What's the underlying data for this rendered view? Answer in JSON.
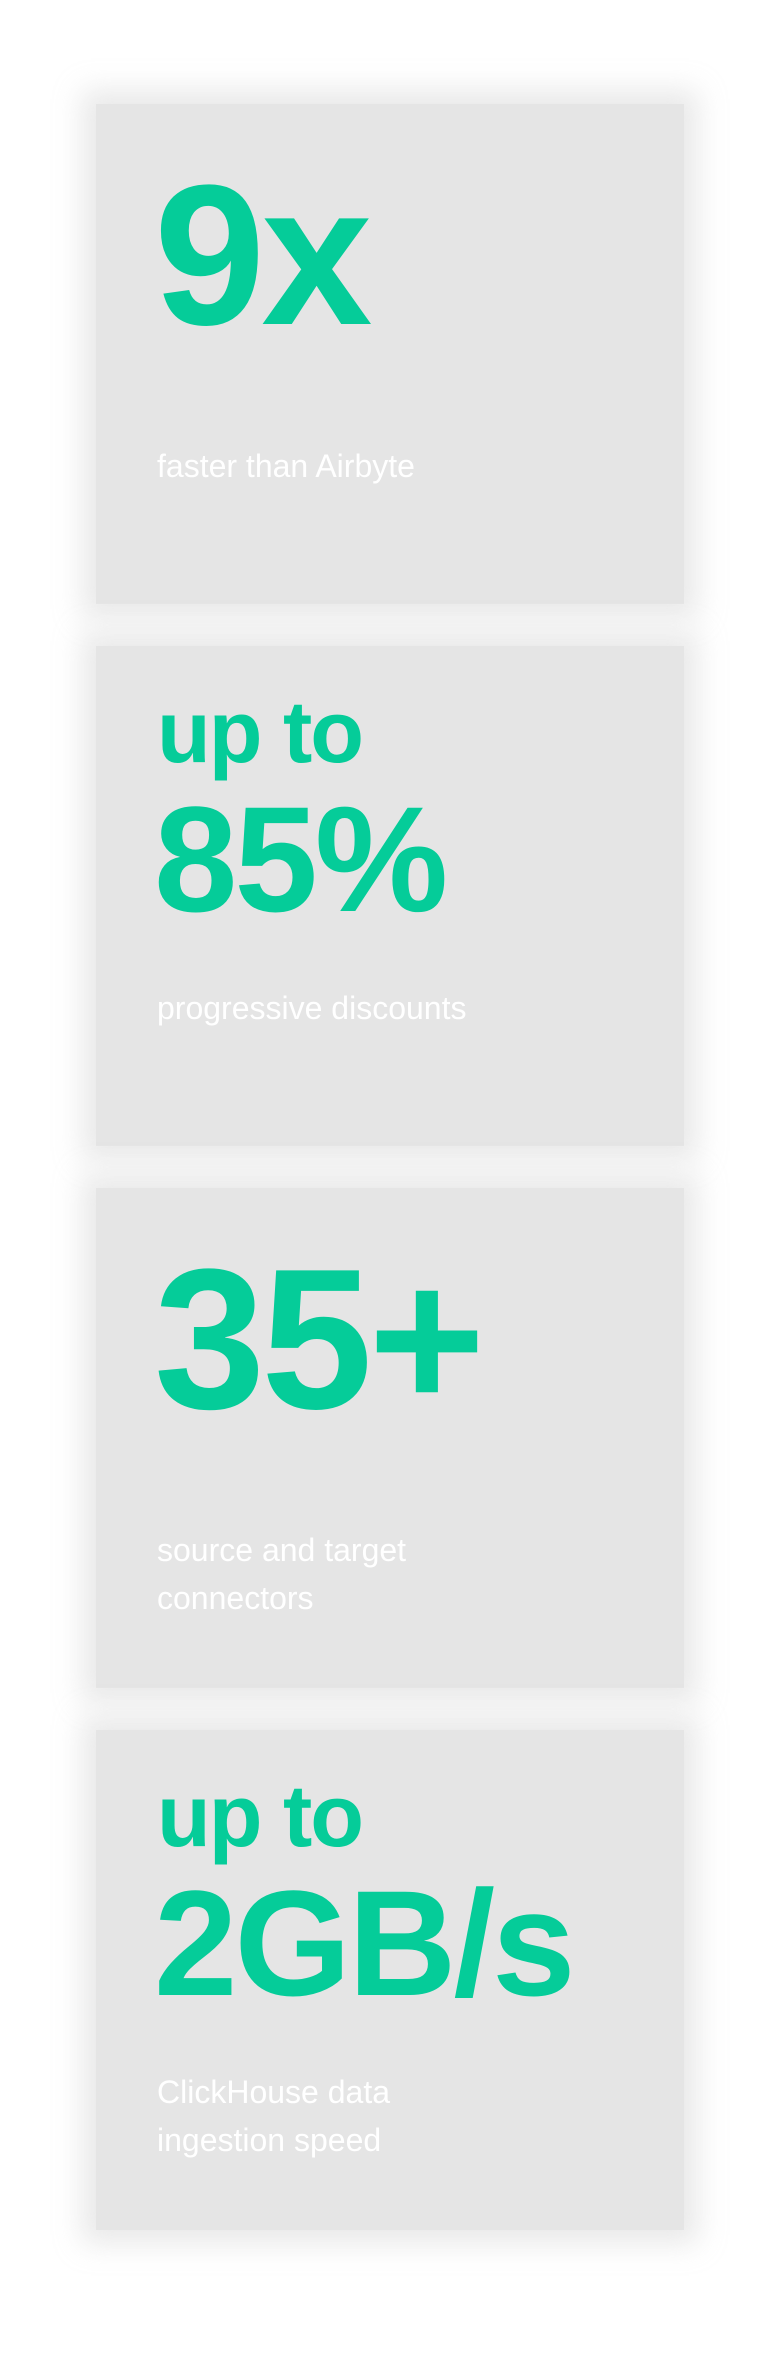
{
  "accent_color": "#05cc99",
  "card_background": "#e5e5e5",
  "stats": [
    {
      "prefix": "",
      "value": "9x",
      "label": "faster than Airbyte"
    },
    {
      "prefix": "up to",
      "value": "85%",
      "label": "progressive discounts"
    },
    {
      "prefix": "",
      "value": "35+",
      "label": "source and target connectors"
    },
    {
      "prefix": "up to",
      "value": "2GB/s",
      "label": "ClickHouse data ingestion speed"
    }
  ]
}
